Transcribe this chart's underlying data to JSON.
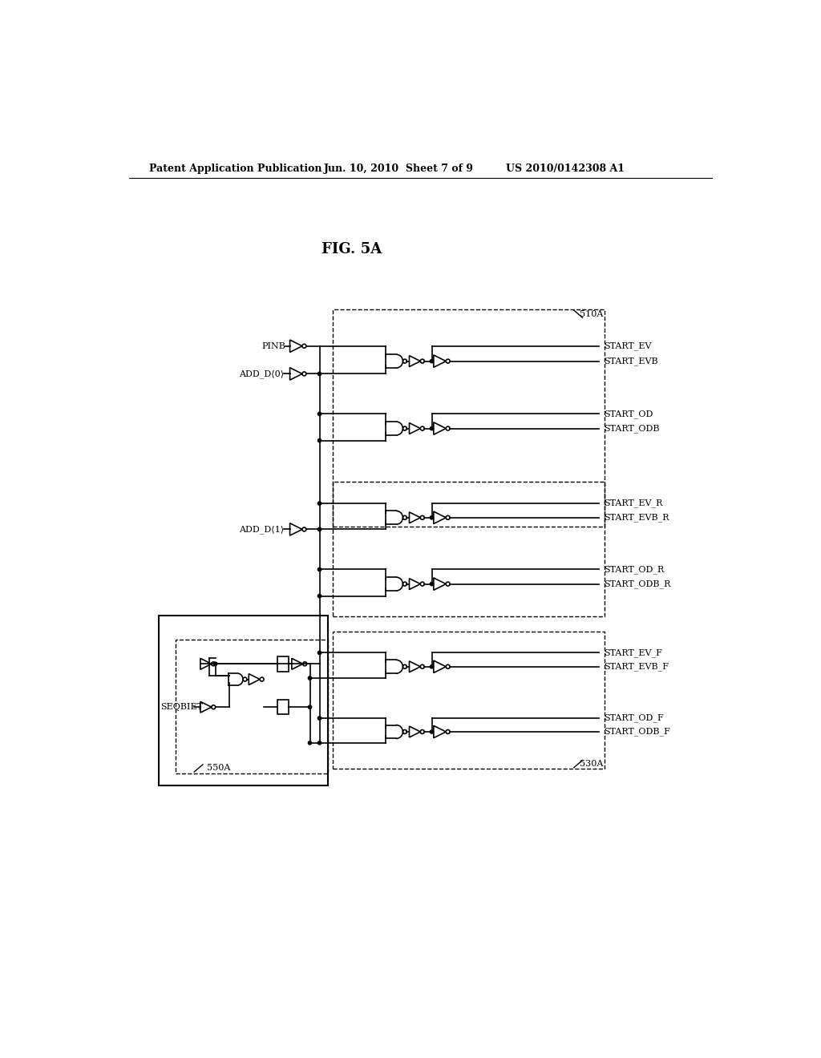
{
  "title": "FIG. 5A",
  "header_left": "Patent Application Publication",
  "header_mid": "Jun. 10, 2010  Sheet 7 of 9",
  "header_right": "US 2010/0142308 A1",
  "bg_color": "#ffffff",
  "font_size_header": 9,
  "font_size_title": 13,
  "font_size_label": 8,
  "label_510A": "510A",
  "label_530A": "530A",
  "label_550A": "550A",
  "output_signals_ev": [
    "START_EV",
    "START_EVB"
  ],
  "output_signals_od": [
    "START_OD",
    "START_ODB"
  ],
  "output_signals_evr": [
    "START_EV_R",
    "START_EVB_R"
  ],
  "output_signals_odr": [
    "START_OD_R",
    "START_ODB_R"
  ],
  "output_signals_evf": [
    "START_EV_F",
    "START_EVB_F"
  ],
  "output_signals_odf": [
    "START_OD_F",
    "START_ODB_F"
  ]
}
